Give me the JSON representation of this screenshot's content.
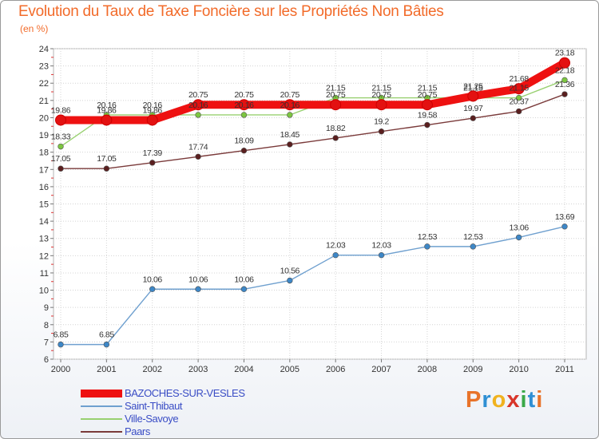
{
  "title": "Evolution du Taux de Taxe Foncière sur les Propriétés Non Bâties",
  "unit_label": "(en %)",
  "logo": {
    "text": "Proxiti",
    "letters": [
      "P",
      "r",
      "o",
      "x",
      "i",
      "t",
      "i"
    ],
    "colors": [
      "#e8732a",
      "#2f8fd3",
      "#f0b21f",
      "#d8352a",
      "#3aa848",
      "#2f8fd3",
      "#e8732a"
    ]
  },
  "chart_data": {
    "type": "line",
    "title": "Evolution du Taux de Taxe Foncière sur les Propriétés Non Bâties",
    "ylabel": "(en %)",
    "xlabel": "",
    "x": [
      "2000",
      "2001",
      "2002",
      "2003",
      "2004",
      "2005",
      "2006",
      "2007",
      "2008",
      "2009",
      "2010",
      "2011"
    ],
    "ylim": [
      6,
      24
    ],
    "yticks": [
      "6",
      "7",
      "8",
      "9",
      "10",
      "11",
      "12",
      "13",
      "14",
      "15",
      "16",
      "17",
      "18",
      "19",
      "20",
      "21",
      "22",
      "23",
      "24"
    ],
    "grid": true,
    "legend_position": "bottom-left",
    "series": [
      {
        "name": "BAZOCHES-SUR-VESLES",
        "color": "#ee1111",
        "marker": "#e31111",
        "width": "thick",
        "values": [
          19.86,
          19.86,
          19.86,
          20.75,
          20.75,
          20.75,
          20.75,
          20.75,
          20.75,
          21.25,
          21.68,
          23.18
        ],
        "labels": [
          "19.86",
          "19.86",
          "19.86",
          "20.75",
          "20.75",
          "20.75",
          "20.75",
          "20.75",
          "20.75",
          "21.25",
          "21.68",
          "23.18"
        ]
      },
      {
        "name": "Saint-Thibaut",
        "color": "#6fa0cf",
        "marker": "#3d87c7",
        "width": "thin",
        "values": [
          6.85,
          6.85,
          10.06,
          10.06,
          10.06,
          10.56,
          12.03,
          12.03,
          12.53,
          12.53,
          13.06,
          13.69
        ],
        "labels": [
          "6.85",
          "6.85",
          "10.06",
          "10.06",
          "10.06",
          "10.56",
          "12.03",
          "12.03",
          "12.53",
          "12.53",
          "13.06",
          "13.69"
        ]
      },
      {
        "name": "Ville-Savoye",
        "color": "#98d070",
        "marker": "#7cc640",
        "width": "thin",
        "values": [
          18.33,
          20.16,
          20.16,
          20.16,
          20.16,
          20.16,
          21.15,
          21.15,
          21.15,
          21.15,
          21.15,
          22.18
        ],
        "labels": [
          "18.33",
          "20.16",
          "20.16",
          "20.16",
          "20.16",
          "20.16",
          "21.15",
          "21.15",
          "21.15",
          "21.15",
          "21.15",
          "22.18"
        ]
      },
      {
        "name": "Paars",
        "color": "#7a3a3a",
        "marker": "#5a1f1f",
        "width": "thin",
        "values": [
          17.05,
          17.05,
          17.39,
          17.74,
          18.09,
          18.45,
          18.82,
          19.2,
          19.58,
          19.97,
          20.37,
          21.36
        ],
        "labels": [
          "17.05",
          "17.05",
          "17.39",
          "17.74",
          "18.09",
          "18.45",
          "18.82",
          "19.2",
          "19.58",
          "19.97",
          "20.37",
          "21.36"
        ]
      }
    ]
  }
}
